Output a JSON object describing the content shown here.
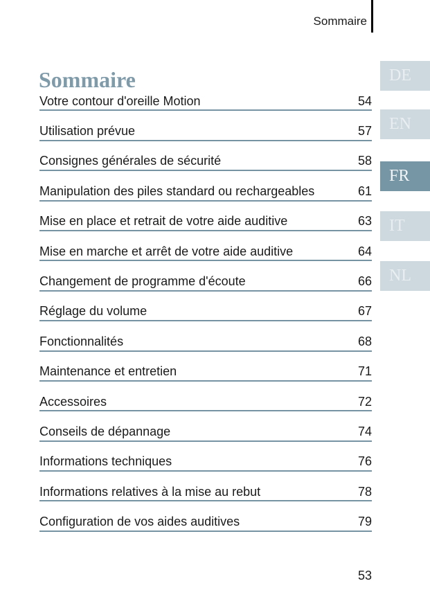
{
  "header": {
    "running_title": "Sommaire"
  },
  "title": "Sommaire",
  "toc": {
    "entries": [
      {
        "label": "Votre contour d'oreille Motion",
        "page": "54"
      },
      {
        "label": "Utilisation prévue",
        "page": "57"
      },
      {
        "label": "Consignes générales de sécurité",
        "page": "58"
      },
      {
        "label": "Manipulation des piles standard ou rechargeables",
        "page": "61"
      },
      {
        "label": "Mise en place et retrait de votre aide auditive",
        "page": "63"
      },
      {
        "label": "Mise en marche et arrêt de votre aide auditive",
        "page": "64"
      },
      {
        "label": "Changement de programme d'écoute",
        "page": "66"
      },
      {
        "label": "Réglage du volume",
        "page": "67"
      },
      {
        "label": "Fonctionnalités",
        "page": "68"
      },
      {
        "label": "Maintenance et entretien",
        "page": "71"
      },
      {
        "label": "Accessoires",
        "page": "72"
      },
      {
        "label": "Conseils de dépannage",
        "page": "74"
      },
      {
        "label": "Informations techniques",
        "page": "76"
      },
      {
        "label": "Informations relatives à la mise au rebut",
        "page": "78"
      },
      {
        "label": "Configuration de vos aides auditives",
        "page": "79"
      }
    ]
  },
  "language_tabs": {
    "items": [
      {
        "label": "DE",
        "active": false
      },
      {
        "label": "EN",
        "active": false
      },
      {
        "label": "FR",
        "active": true
      },
      {
        "label": "IT",
        "active": false
      },
      {
        "label": "NL",
        "active": false
      }
    ]
  },
  "folio": {
    "page_number": "53"
  },
  "colors": {
    "title_accent": "#7f9aa9",
    "toc_rule": "#7593a2",
    "tab_inactive_bg": "#cdd9df",
    "tab_inactive_text": "#e9eef1",
    "tab_active_bg": "#7796a5",
    "tab_active_text": "#f2f5f6",
    "body_text": "#1a1a1a",
    "header_rule": "#000000"
  }
}
